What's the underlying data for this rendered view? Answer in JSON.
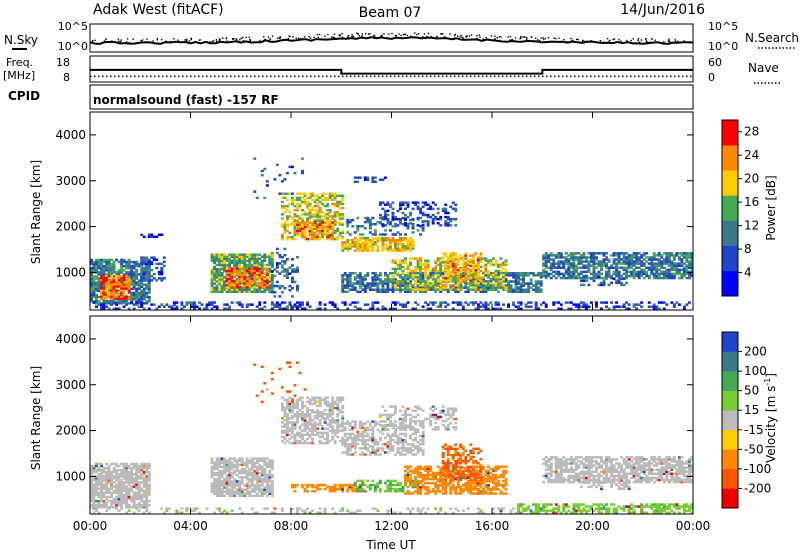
{
  "header": {
    "station": "Adak West (fitACF)",
    "beam": "Beam 07",
    "date": "14/Jun/2016"
  },
  "noise_panel": {
    "left_label": "N.Sky",
    "right_label": "N.Search",
    "left_ticks": [
      "10^5",
      "10^0"
    ],
    "right_ticks": [
      "10^5",
      "10^0"
    ]
  },
  "freq_panel": {
    "left_label": "Freq.",
    "left_unit": "[MHz]",
    "right_label": "Nave",
    "left_ticks": [
      "18",
      "8"
    ],
    "right_ticks": [
      "60",
      "0"
    ],
    "freq_segments": [
      {
        "start_hr": 0,
        "end_hr": 10,
        "mhz": 12.5
      },
      {
        "start_hr": 10,
        "end_hr": 18,
        "mhz": 10.5
      },
      {
        "start_hr": 18,
        "end_hr": 24,
        "mhz": 12.5
      }
    ],
    "nave_level": 10
  },
  "cpid": {
    "label": "CPID",
    "text": "normalsound (fast) -157 RF"
  },
  "chart_data": [
    {
      "type": "heatmap",
      "title": "Power",
      "xlabel": "",
      "ylabel": "Slant Range [km]",
      "ylim": [
        180,
        4500
      ],
      "xlim_hours": [
        0,
        24
      ],
      "y_ticks": [
        "1000",
        "2000",
        "3000",
        "4000"
      ],
      "x_ticks": [
        "00:00",
        "04:00",
        "08:00",
        "12:00",
        "16:00",
        "20:00",
        "00:00"
      ],
      "colorbar": {
        "label": "Power [dB]",
        "ticks": [
          "4",
          "8",
          "12",
          "16",
          "20",
          "24",
          "28"
        ],
        "range": [
          0,
          30
        ],
        "colors": [
          "#0000ff",
          "#2244cc",
          "#3a7a8a",
          "#44aa55",
          "#ffcc00",
          "#ff8800",
          "#ff0000"
        ]
      },
      "regions": [
        {
          "t": [
            0.0,
            2.4
          ],
          "r": [
            300,
            1250
          ],
          "v": 11,
          "d": 0.8
        },
        {
          "t": [
            0.4,
            1.6
          ],
          "r": [
            400,
            900
          ],
          "v": 24,
          "d": 0.8
        },
        {
          "t": [
            2.0,
            3.0
          ],
          "r": [
            800,
            1300
          ],
          "v": 8,
          "d": 0.45
        },
        {
          "t": [
            2.0,
            3.0
          ],
          "r": [
            1750,
            1800
          ],
          "v": 6,
          "d": 0.6
        },
        {
          "t": [
            4.8,
            7.2
          ],
          "r": [
            550,
            1400
          ],
          "v": 14,
          "d": 0.85
        },
        {
          "t": [
            5.4,
            7.0
          ],
          "r": [
            650,
            1100
          ],
          "v": 24,
          "d": 0.7
        },
        {
          "t": [
            7.2,
            8.2
          ],
          "r": [
            450,
            1500
          ],
          "v": 9,
          "d": 0.3
        },
        {
          "t": [
            7.6,
            10.0
          ],
          "r": [
            1700,
            2700
          ],
          "v": 18,
          "d": 0.55
        },
        {
          "t": [
            8.2,
            9.6
          ],
          "r": [
            1700,
            2100
          ],
          "v": 23,
          "d": 0.6
        },
        {
          "t": [
            10.0,
            12.8
          ],
          "r": [
            1450,
            1750
          ],
          "v": 20,
          "d": 0.75
        },
        {
          "t": [
            10.2,
            13.2
          ],
          "r": [
            1800,
            2200
          ],
          "v": 10,
          "d": 0.35
        },
        {
          "t": [
            11.5,
            14.5
          ],
          "r": [
            2000,
            2500
          ],
          "v": 7,
          "d": 0.35
        },
        {
          "t": [
            10.0,
            18.0
          ],
          "r": [
            550,
            1000
          ],
          "v": 10,
          "d": 0.65
        },
        {
          "t": [
            12.0,
            16.5
          ],
          "r": [
            600,
            1300
          ],
          "v": 18,
          "d": 0.55
        },
        {
          "t": [
            14.0,
            15.5
          ],
          "r": [
            800,
            1400
          ],
          "v": 22,
          "d": 0.5
        },
        {
          "t": [
            10.5,
            11.8
          ],
          "r": [
            2950,
            3050
          ],
          "v": 7,
          "d": 0.4
        },
        {
          "t": [
            18.0,
            24.0
          ],
          "r": [
            850,
            1400
          ],
          "v": 10,
          "d": 0.7
        },
        {
          "t": [
            19.5,
            21.5
          ],
          "r": [
            700,
            900
          ],
          "v": 8,
          "d": 0.35
        },
        {
          "t": [
            0.0,
            24.0
          ],
          "r": [
            180,
            330
          ],
          "v": 6,
          "d": 0.35
        },
        {
          "t": [
            6.5,
            8.5
          ],
          "r": [
            2600,
            3500
          ],
          "v": 8,
          "d": 0.07
        }
      ]
    },
    {
      "type": "heatmap",
      "title": "Velocity",
      "xlabel": "Time UT",
      "ylabel": "Slant Range [km]",
      "ylim": [
        180,
        4500
      ],
      "xlim_hours": [
        0,
        24
      ],
      "y_ticks": [
        "1000",
        "2000",
        "3000",
        "4000"
      ],
      "x_ticks": [
        "00:00",
        "04:00",
        "08:00",
        "12:00",
        "16:00",
        "20:00",
        "00:00"
      ],
      "colorbar": {
        "label": "Velocity [m s^-1]",
        "ticks": [
          "200",
          "100",
          "50",
          "15",
          "-15",
          "-50",
          "-100",
          "-200"
        ],
        "colors": [
          "#2244cc",
          "#3a7a8a",
          "#44aa55",
          "#77cc33",
          "#bbbbbb",
          "#ffcc00",
          "#ff8800",
          "#ff5500",
          "#ee0000"
        ]
      },
      "regions": [
        {
          "t": [
            0.0,
            2.4
          ],
          "r": [
            300,
            1250
          ],
          "v": 0,
          "d": 0.8
        },
        {
          "t": [
            4.8,
            7.2
          ],
          "r": [
            550,
            1400
          ],
          "v": 0,
          "d": 0.8
        },
        {
          "t": [
            7.6,
            10.0
          ],
          "r": [
            1700,
            2700
          ],
          "v": 0,
          "d": 0.6
        },
        {
          "t": [
            10.0,
            13.2
          ],
          "r": [
            1450,
            2200
          ],
          "v": 0,
          "d": 0.5
        },
        {
          "t": [
            11.5,
            14.5
          ],
          "r": [
            2000,
            2500
          ],
          "v": 0,
          "d": 0.35
        },
        {
          "t": [
            8.0,
            10.5
          ],
          "r": [
            650,
            800
          ],
          "v": -40,
          "d": 0.6
        },
        {
          "t": [
            10.5,
            13.0
          ],
          "r": [
            650,
            900
          ],
          "v": 30,
          "d": 0.55
        },
        {
          "t": [
            12.5,
            16.5
          ],
          "r": [
            600,
            1200
          ],
          "v": -60,
          "d": 0.65
        },
        {
          "t": [
            14.0,
            15.5
          ],
          "r": [
            900,
            1700
          ],
          "v": -80,
          "d": 0.55
        },
        {
          "t": [
            18.0,
            24.0
          ],
          "r": [
            850,
            1400
          ],
          "v": 0,
          "d": 0.7
        },
        {
          "t": [
            19.5,
            21.5
          ],
          "r": [
            700,
            900
          ],
          "v": 0,
          "d": 0.35
        },
        {
          "t": [
            17.0,
            24.0
          ],
          "r": [
            180,
            380
          ],
          "v": 25,
          "d": 0.6
        },
        {
          "t": [
            0.0,
            17.0
          ],
          "r": [
            180,
            300
          ],
          "v": 10,
          "d": 0.25
        },
        {
          "t": [
            6.5,
            8.5
          ],
          "r": [
            2600,
            3500
          ],
          "v": -100,
          "d": 0.07
        }
      ]
    }
  ]
}
